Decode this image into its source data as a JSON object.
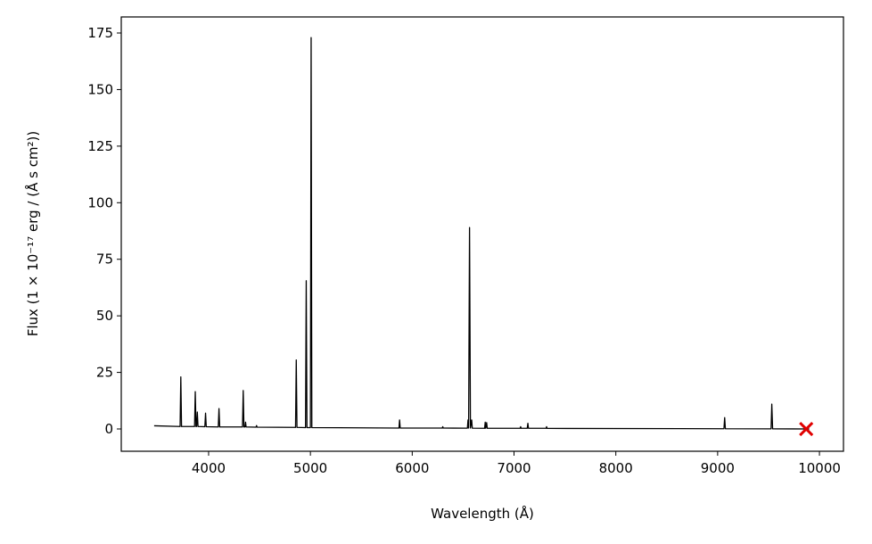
{
  "chart_data": {
    "type": "line",
    "xlabel": "Wavelength (Å)",
    "ylabel": "Flux (1 × 10⁻¹⁷ erg / (Å s cm²))",
    "xlim": [
      3142,
      10236
    ],
    "ylim": [
      -9.85,
      182.1
    ],
    "xticks": [
      4000,
      5000,
      6000,
      7000,
      8000,
      9000,
      10000
    ],
    "yticks": [
      0,
      25,
      50,
      75,
      100,
      125,
      150,
      175
    ],
    "grid": false,
    "series": [
      {
        "color": "#000000",
        "marker": "none",
        "x": [
          3465,
          3720,
          3727,
          3734,
          3862,
          3869,
          3876,
          3882,
          3889,
          3896,
          3963,
          3970,
          3977,
          4095,
          4102,
          4109,
          4333,
          4340,
          4347,
          4358,
          4363,
          4368,
          4466,
          4471,
          4476,
          4854,
          4861,
          4868,
          4952,
          4959,
          4966,
          5000,
          5007,
          5014,
          5870,
          5876,
          5882,
          6295,
          6300,
          6305,
          6542,
          6548,
          6554,
          6563,
          6572,
          6584,
          6590,
          6711,
          6717,
          6722,
          6731,
          6737,
          7060,
          7065,
          7070,
          7130,
          7136,
          7142,
          7315,
          7320,
          7325,
          9062,
          9069,
          9076,
          9525,
          9532,
          9540,
          9900
        ],
        "values": [
          1.4,
          1.1,
          23,
          1.1,
          1.1,
          16.5,
          1.1,
          1.1,
          7.5,
          1.1,
          1.0,
          7,
          1.0,
          0.9,
          9,
          0.9,
          0.9,
          17,
          0.9,
          0.9,
          3,
          0.9,
          0.8,
          1.5,
          0.8,
          0.7,
          30.5,
          0.7,
          0.6,
          65.5,
          0.6,
          0.6,
          173,
          0.6,
          0.4,
          4,
          0.4,
          0.4,
          1,
          0.4,
          0.35,
          4,
          0.4,
          89,
          0.4,
          4,
          0.35,
          0.3,
          3,
          0.3,
          2.8,
          0.3,
          0.3,
          1,
          0.3,
          0.3,
          2.5,
          0.3,
          0.3,
          1,
          0.25,
          0.1,
          5,
          0.1,
          0.05,
          11,
          0.05,
          0
        ]
      },
      {
        "color": "#e00000",
        "marker": "x",
        "x": [
          9870
        ],
        "values": [
          0
        ]
      }
    ]
  }
}
